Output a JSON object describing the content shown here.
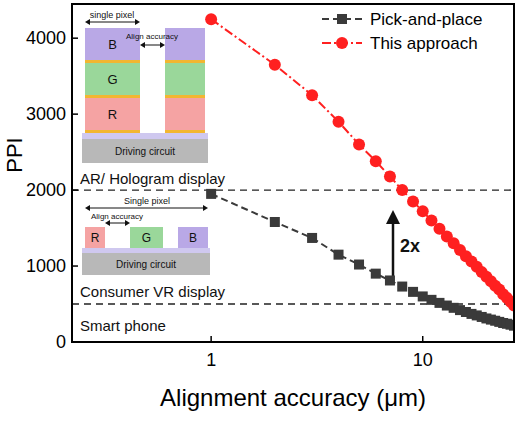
{
  "chart_data": {
    "type": "line",
    "x_label": "Alignment accuracy (μm)",
    "y_label": "PPI",
    "log": "x",
    "xlim": [
      0.22,
      27
    ],
    "xticks": [
      1,
      10
    ],
    "ylim": [
      0,
      4450
    ],
    "yticks": [
      0,
      1000,
      2000,
      3000,
      4000
    ],
    "legend": "upper right",
    "x": [
      1,
      2,
      3,
      4,
      5,
      6,
      7,
      8,
      9,
      10,
      11,
      12,
      13,
      14,
      15,
      16,
      17,
      18,
      19,
      20,
      21,
      22,
      23,
      24,
      25,
      26,
      27
    ],
    "series": [
      {
        "name": "Pick-and-place",
        "color": "#3a3a3a",
        "marker": "square",
        "line_style": "dashed",
        "values": [
          1950,
          1580,
          1370,
          1150,
          1020,
          900,
          810,
          730,
          660,
          600,
          555,
          515,
          480,
          450,
          420,
          395,
          370,
          350,
          330,
          310,
          295,
          280,
          265,
          250,
          240,
          228,
          215
        ]
      },
      {
        "name": "This approach",
        "color": "#ff2020",
        "marker": "circle",
        "line_style": "dashdot",
        "values": [
          4250,
          3650,
          3250,
          2900,
          2600,
          2380,
          2180,
          2000,
          1850,
          1720,
          1600,
          1490,
          1390,
          1300,
          1210,
          1130,
          1060,
          990,
          920,
          860,
          800,
          740,
          690,
          630,
          580,
          530,
          480
        ]
      }
    ],
    "reference_lines": [
      {
        "value": 2000
      },
      {
        "value": 500
      }
    ],
    "annotations": [
      {
        "text": "AR/ Hologram display"
      },
      {
        "text": "Consumer VR display"
      },
      {
        "text": "Smart phone"
      },
      {
        "text": "2x"
      }
    ],
    "insets": [
      {
        "title": "single pixel",
        "gap": "Align accuracy",
        "layers": [
          "B",
          "G",
          "R"
        ],
        "base": "Driving circuit"
      },
      {
        "title": "Single pixel",
        "gap": "Align accuracy",
        "layers": [
          "R",
          "G",
          "B"
        ],
        "base": "Driving circuit"
      }
    ]
  }
}
